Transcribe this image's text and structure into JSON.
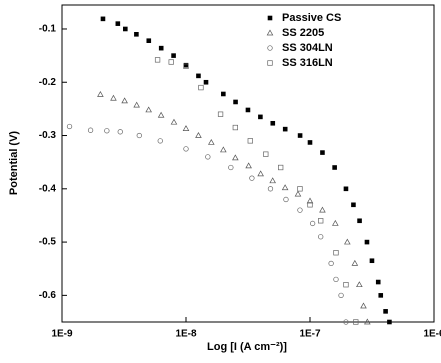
{
  "chart_data": {
    "type": "scatter",
    "xlabel": "Log [I (A cm⁻²)]",
    "ylabel": "Potential (V)",
    "xscale": "log",
    "xlim": [
      1e-09,
      1e-06
    ],
    "ylim": [
      -0.65,
      -0.055
    ],
    "xticks": [
      {
        "value": 1e-09,
        "label": "1E-9"
      },
      {
        "value": 1e-08,
        "label": "1E-8"
      },
      {
        "value": 1e-07,
        "label": "1E-7"
      },
      {
        "value": 1e-06,
        "label": "1E-6"
      }
    ],
    "yticks": [
      -0.6,
      -0.5,
      -0.4,
      -0.3,
      -0.2,
      -0.1
    ],
    "legend": "upper right",
    "series": [
      {
        "name": "Passive CS",
        "color": "#000000",
        "marker": "filled-square",
        "x": [
          2.14e-09,
          2.82e-09,
          3.24e-09,
          3.98e-09,
          5.01e-09,
          6.31e-09,
          7.94e-09,
          1e-08,
          1.26e-08,
          1.45e-08,
          2e-08,
          2.51e-08,
          3.16e-08,
          3.98e-08,
          5.01e-08,
          6.31e-08,
          8.32e-08,
          1e-07,
          1.26e-07,
          1.58e-07,
          1.95e-07,
          2.24e-07,
          2.51e-07,
          2.88e-07,
          3.16e-07,
          3.55e-07,
          3.72e-07,
          4.07e-07,
          4.37e-07
        ],
        "values": [
          -0.081,
          -0.09,
          -0.1,
          -0.11,
          -0.122,
          -0.136,
          -0.15,
          -0.168,
          -0.188,
          -0.2,
          -0.222,
          -0.237,
          -0.252,
          -0.265,
          -0.277,
          -0.288,
          -0.3,
          -0.313,
          -0.332,
          -0.36,
          -0.4,
          -0.43,
          -0.46,
          -0.5,
          -0.535,
          -0.575,
          -0.6,
          -0.63,
          -0.65
        ]
      },
      {
        "name": "SS 2205",
        "color": "#555555",
        "marker": "triangle",
        "x": [
          2.04e-09,
          2.6e-09,
          3.2e-09,
          4e-09,
          5e-09,
          6.3e-09,
          8e-09,
          1e-08,
          1.26e-08,
          1.6e-08,
          2e-08,
          2.5e-08,
          3.2e-08,
          4e-08,
          5e-08,
          6.3e-08,
          8e-08,
          1e-07,
          1.26e-07,
          1.6e-07,
          2e-07,
          2.3e-07,
          2.5e-07,
          2.7e-07,
          2.9e-07
        ],
        "values": [
          -0.223,
          -0.23,
          -0.235,
          -0.243,
          -0.252,
          -0.262,
          -0.275,
          -0.287,
          -0.3,
          -0.313,
          -0.327,
          -0.342,
          -0.357,
          -0.372,
          -0.385,
          -0.398,
          -0.41,
          -0.423,
          -0.44,
          -0.465,
          -0.5,
          -0.54,
          -0.58,
          -0.62,
          -0.65
        ]
      },
      {
        "name": "SS 304LN",
        "color": "#666666",
        "marker": "circle",
        "x": [
          1.15e-09,
          1.7e-09,
          2.3e-09,
          2.95e-09,
          4.2e-09,
          6.2e-09,
          1e-08,
          1.5e-08,
          2.3e-08,
          3.4e-08,
          4.8e-08,
          6.4e-08,
          8.3e-08,
          1.05e-07,
          1.22e-07,
          1.48e-07,
          1.62e-07,
          1.78e-07,
          1.95e-07
        ],
        "values": [
          -0.283,
          -0.29,
          -0.291,
          -0.293,
          -0.3,
          -0.31,
          -0.325,
          -0.34,
          -0.36,
          -0.38,
          -0.4,
          -0.42,
          -0.44,
          -0.465,
          -0.49,
          -0.54,
          -0.57,
          -0.6,
          -0.65
        ]
      },
      {
        "name": "SS 316LN",
        "color": "#666666",
        "marker": "square",
        "x": [
          5.9e-09,
          7.6e-09,
          1e-08,
          1.32e-08,
          1.9e-08,
          2.5e-08,
          3.3e-08,
          4.4e-08,
          5.8e-08,
          8.3e-08,
          1e-07,
          1.22e-07,
          1.62e-07,
          1.95e-07,
          2.34e-07
        ],
        "values": [
          -0.158,
          -0.162,
          -0.17,
          -0.21,
          -0.26,
          -0.285,
          -0.31,
          -0.335,
          -0.36,
          -0.4,
          -0.43,
          -0.46,
          -0.52,
          -0.58,
          -0.65
        ]
      }
    ]
  }
}
